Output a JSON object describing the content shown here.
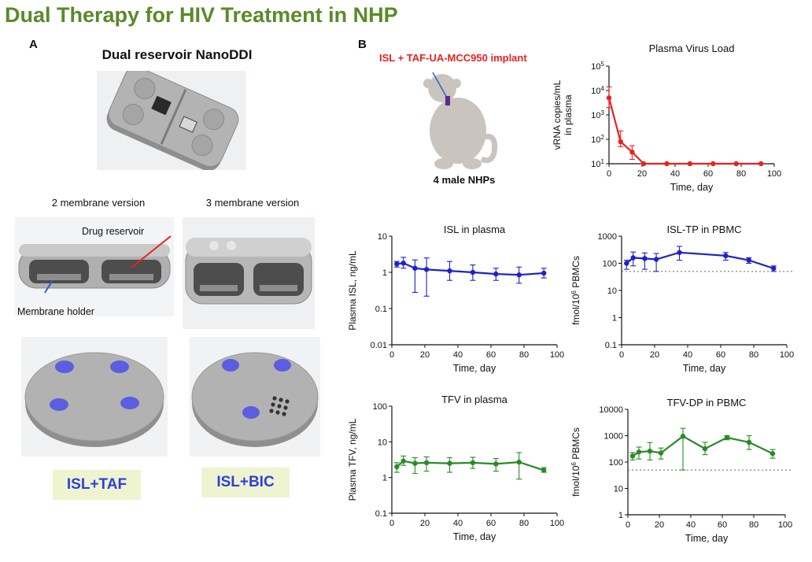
{
  "title": "Dual Therapy for HIV Treatment in NHP",
  "panel_a": {
    "letter": "A",
    "heading": "Dual reservoir NanoDDI",
    "version_2": "2 membrane version",
    "version_3": "3 membrane version",
    "label_drug_reservoir": "Drug reservoir",
    "label_membrane_holder": "Membrane holder",
    "badge_left": "ISL+TAF",
    "badge_right": "ISL+BIC"
  },
  "panel_b": {
    "letter": "B",
    "implant_label": "ISL + TAF-UA-MCC950 implant",
    "subjects": "4 male NHPs"
  },
  "colors": {
    "title": "#5a8a2a",
    "red": "#e8231f",
    "blue": "#1f22c8",
    "green": "#2a8a25",
    "badge_bg": "#eef4cf",
    "badge_text": "#2d3fe0",
    "device": "#a9a9a9",
    "membrane": "#5b5ee0"
  },
  "chart_data": [
    {
      "id": "virus",
      "type": "line",
      "title": "Plasma Virus Load",
      "xlabel": "Time, day",
      "ylabel": "vRNA copies/mL in plasma",
      "ylabel_lines": [
        "vRNA copies/mL",
        "in plasma"
      ],
      "yscale": "log",
      "xlim": [
        0,
        100
      ],
      "ylim": [
        10,
        100000
      ],
      "xticks": [
        0,
        20,
        40,
        60,
        80,
        100
      ],
      "xtick_labels": [
        "0",
        "20",
        "40",
        "60",
        "80",
        "100"
      ],
      "yticks": [
        10,
        100,
        1000,
        10000,
        100000
      ],
      "ytick_labels": [
        "10^1",
        "10^2",
        "10^3",
        "10^4",
        "10^5"
      ],
      "color": "#e8231f",
      "x": [
        0,
        7,
        14,
        21,
        35,
        49,
        63,
        77,
        92
      ],
      "y": [
        5000,
        80,
        30,
        10,
        10,
        10,
        10,
        10,
        10
      ],
      "err_hi": [
        14000,
        220,
        55,
        10,
        10,
        10,
        10,
        10,
        10
      ],
      "err_lo": [
        2000,
        50,
        15,
        10,
        10,
        10,
        10,
        10,
        10
      ]
    },
    {
      "id": "isl",
      "type": "line",
      "title": "ISL in plasma",
      "xlabel": "Time, day",
      "ylabel": "Plasma ISL, ng/mL",
      "ylabel_lines": [
        "Plasma ISL, ng/mL"
      ],
      "yscale": "log",
      "xlim": [
        0,
        100
      ],
      "ylim": [
        0.01,
        10
      ],
      "xticks": [
        0,
        20,
        40,
        60,
        80,
        100
      ],
      "xtick_labels": [
        "0",
        "20",
        "40",
        "60",
        "80",
        "100"
      ],
      "yticks": [
        0.01,
        0.1,
        1,
        10
      ],
      "ytick_labels": [
        "0.01",
        "0.1",
        "1",
        "10"
      ],
      "color": "#1f22c8",
      "x": [
        3,
        7,
        14,
        21,
        35,
        49,
        63,
        77,
        92
      ],
      "y": [
        1.7,
        1.8,
        1.3,
        1.2,
        1.1,
        1.0,
        0.9,
        0.85,
        0.95
      ],
      "err_hi": [
        2.0,
        2.6,
        2.2,
        2.5,
        2.0,
        1.6,
        1.3,
        1.4,
        1.3
      ],
      "err_lo": [
        1.4,
        1.3,
        0.28,
        0.22,
        0.6,
        0.6,
        0.6,
        0.5,
        0.7
      ]
    },
    {
      "id": "isltp",
      "type": "line",
      "title": "ISL-TP in PBMC",
      "xlabel": "Time, day",
      "ylabel": "fmol/10^6 PBMCs",
      "ylabel_lines": [
        "fmol/10^6 PBMCs"
      ],
      "yscale": "log",
      "xlim": [
        0,
        100
      ],
      "ylim": [
        0.1,
        1000
      ],
      "xticks": [
        0,
        20,
        40,
        60,
        80,
        100
      ],
      "xtick_labels": [
        "0",
        "20",
        "40",
        "60",
        "80",
        "100"
      ],
      "yticks": [
        0.1,
        1,
        10,
        100,
        1000
      ],
      "ytick_labels": [
        "0.1",
        "1",
        "10",
        "100",
        "1000"
      ],
      "color": "#1f22c8",
      "threshold": 50,
      "x": [
        3,
        7,
        14,
        21,
        35,
        63,
        77,
        92
      ],
      "y": [
        100,
        160,
        150,
        140,
        250,
        190,
        130,
        65
      ],
      "err_hi": [
        130,
        260,
        240,
        230,
        420,
        250,
        160,
        80
      ],
      "err_lo": [
        60,
        80,
        60,
        50,
        130,
        130,
        100,
        50
      ]
    },
    {
      "id": "tfv",
      "type": "line",
      "title": "TFV in plasma",
      "xlabel": "Time, day",
      "ylabel": "Plasma TFV, ng/mL",
      "ylabel_lines": [
        "Plasma TFV, ng/mL"
      ],
      "yscale": "log",
      "xlim": [
        0,
        100
      ],
      "ylim": [
        0.1,
        100
      ],
      "xticks": [
        0,
        20,
        40,
        60,
        80,
        100
      ],
      "xtick_labels": [
        "0",
        "20",
        "40",
        "60",
        "80",
        "100"
      ],
      "yticks": [
        0.1,
        1,
        10,
        100
      ],
      "ytick_labels": [
        "0.1",
        "1",
        "10",
        "100"
      ],
      "color": "#2a8a25",
      "x": [
        3,
        7,
        14,
        21,
        35,
        49,
        63,
        77,
        92
      ],
      "y": [
        2.0,
        2.9,
        2.5,
        2.6,
        2.5,
        2.6,
        2.4,
        2.7,
        1.6
      ],
      "err_hi": [
        2.6,
        4.0,
        3.6,
        3.8,
        3.6,
        3.7,
        3.4,
        5.0,
        1.9
      ],
      "err_lo": [
        1.4,
        2.2,
        1.3,
        1.5,
        1.4,
        1.8,
        1.5,
        0.9,
        1.4
      ]
    },
    {
      "id": "tfvdp",
      "type": "line",
      "title": "TFV-DP in PBMC",
      "xlabel": "Time, day",
      "ylabel": "fmol/10^6 PBMCs",
      "ylabel_lines": [
        "fmol/10^6 PBMCs"
      ],
      "yscale": "log",
      "xlim": [
        0,
        100
      ],
      "ylim": [
        1,
        10000
      ],
      "xticks": [
        0,
        20,
        40,
        60,
        80,
        100
      ],
      "xtick_labels": [
        "0",
        "20",
        "40",
        "60",
        "80",
        "100"
      ],
      "yticks": [
        1,
        10,
        100,
        1000,
        10000
      ],
      "ytick_labels": [
        "1",
        "10",
        "100",
        "1000",
        "10000"
      ],
      "color": "#2a8a25",
      "threshold": 50,
      "x": [
        3,
        7,
        14,
        21,
        35,
        49,
        63,
        77,
        92
      ],
      "y": [
        170,
        240,
        260,
        220,
        950,
        320,
        850,
        560,
        210
      ],
      "err_hi": [
        230,
        370,
        550,
        340,
        1900,
        560,
        1000,
        1000,
        300
      ],
      "err_lo": [
        120,
        130,
        120,
        130,
        50,
        190,
        700,
        300,
        140
      ]
    }
  ]
}
